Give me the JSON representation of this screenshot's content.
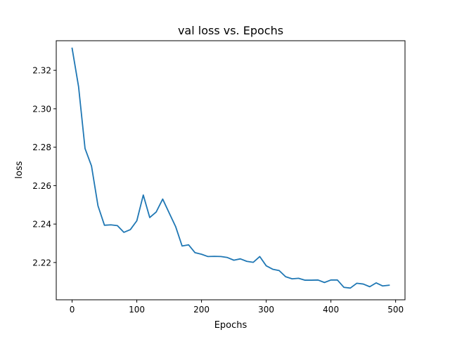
{
  "chart_data": {
    "type": "line",
    "title": "val loss vs. Epochs",
    "xlabel": "Epochs",
    "ylabel": "loss",
    "xlim": [
      -24.5,
      514.5
    ],
    "ylim": [
      2.2006,
      2.3354
    ],
    "xticks": [
      0,
      100,
      200,
      300,
      400,
      500
    ],
    "yticks": [
      2.22,
      2.24,
      2.26,
      2.28,
      2.3,
      2.32
    ],
    "ytick_labels": [
      "2.22",
      "2.24",
      "2.26",
      "2.28",
      "2.30",
      "2.32"
    ],
    "grid": false,
    "line_color": "#1f77b4",
    "series": [
      {
        "name": "val loss",
        "x": [
          0,
          10,
          20,
          30,
          40,
          50,
          60,
          70,
          80,
          90,
          100,
          110,
          120,
          130,
          140,
          150,
          160,
          170,
          180,
          190,
          200,
          210,
          220,
          230,
          240,
          250,
          260,
          270,
          280,
          290,
          300,
          310,
          320,
          330,
          340,
          350,
          360,
          370,
          380,
          390,
          400,
          410,
          420,
          430,
          440,
          450,
          460,
          470,
          480,
          490
        ],
        "y": [
          2.3315,
          2.3115,
          2.2793,
          2.2702,
          2.2495,
          2.2394,
          2.2396,
          2.2392,
          2.2357,
          2.2371,
          2.2417,
          2.2551,
          2.2434,
          2.2463,
          2.253,
          2.2458,
          2.2387,
          2.2286,
          2.2292,
          2.2251,
          2.2243,
          2.2231,
          2.2232,
          2.2231,
          2.2226,
          2.2212,
          2.2219,
          2.2206,
          2.2201,
          2.2231,
          2.2183,
          2.2165,
          2.2158,
          2.2126,
          2.2115,
          2.2118,
          2.2108,
          2.2108,
          2.2109,
          2.2096,
          2.2109,
          2.2109,
          2.2071,
          2.2067,
          2.2092,
          2.2088,
          2.2074,
          2.2094,
          2.2078,
          2.2082
        ]
      }
    ]
  }
}
